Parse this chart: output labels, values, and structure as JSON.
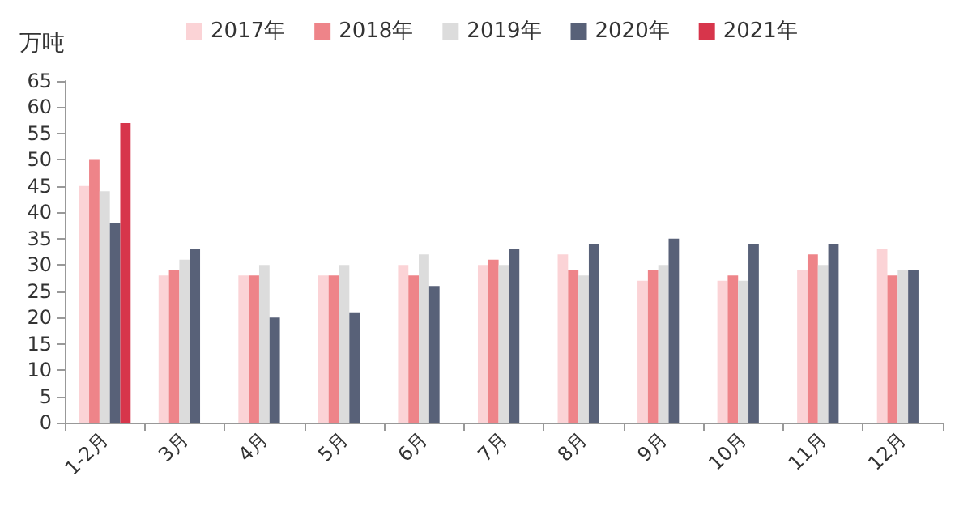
{
  "chart_data": {
    "type": "bar",
    "ylabel": "万吨",
    "categories": [
      "1-2月",
      "3月",
      "4月",
      "5月",
      "6月",
      "7月",
      "8月",
      "9月",
      "10月",
      "11月",
      "12月"
    ],
    "series": [
      {
        "name": "2017年",
        "color": "#fbd3d6",
        "values": [
          45,
          28,
          28,
          28,
          30,
          30,
          32,
          27,
          27,
          29,
          33
        ]
      },
      {
        "name": "2018年",
        "color": "#ee8489",
        "values": [
          50,
          29,
          28,
          28,
          28,
          31,
          29,
          29,
          28,
          32,
          28
        ]
      },
      {
        "name": "2019年",
        "color": "#dcdcdc",
        "values": [
          44,
          31,
          30,
          30,
          32,
          30,
          28,
          30,
          27,
          30,
          29
        ]
      },
      {
        "name": "2020年",
        "color": "#586178",
        "values": [
          38,
          33,
          20,
          21,
          26,
          33,
          34,
          35,
          34,
          34,
          29
        ]
      },
      {
        "name": "2021年",
        "color": "#d7354b",
        "values": [
          57,
          null,
          null,
          null,
          null,
          null,
          null,
          null,
          null,
          null,
          null
        ]
      }
    ],
    "ylim": [
      0,
      65
    ],
    "yticks": [
      0,
      5,
      10,
      15,
      20,
      25,
      30,
      35,
      40,
      45,
      50,
      55,
      60,
      65
    ],
    "grid": false,
    "legend": "top"
  }
}
